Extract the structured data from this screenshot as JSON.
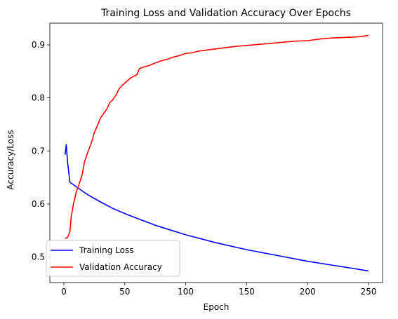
{
  "chart_data": {
    "type": "line",
    "title": "Training Loss and Validation Accuracy Over Epochs",
    "xlabel": "Epoch",
    "ylabel": "Accuracy/Loss",
    "xlim": [
      -11.5,
      261.5
    ],
    "ylim": [
      0.452,
      0.941
    ],
    "xticks": [
      0,
      50,
      100,
      150,
      200,
      250
    ],
    "yticks": [
      0.5,
      0.6,
      0.7,
      0.8,
      0.9
    ],
    "ytick_labels": [
      "0.5",
      "0.6",
      "0.7",
      "0.8",
      "0.9"
    ],
    "grid": false,
    "legend": "lower-left",
    "series": [
      {
        "name": "Training Loss",
        "color": "#0000ff",
        "x": [
          1,
          2,
          3,
          5,
          10,
          15,
          20,
          30,
          40,
          50,
          60,
          75,
          100,
          125,
          150,
          175,
          200,
          225,
          250
        ],
        "values": [
          0.693,
          0.712,
          0.68,
          0.641,
          0.633,
          0.625,
          0.617,
          0.604,
          0.592,
          0.582,
          0.573,
          0.56,
          0.542,
          0.527,
          0.514,
          0.503,
          0.492,
          0.483,
          0.474
        ]
      },
      {
        "name": "Validation Accuracy",
        "color": "#ff0000",
        "x": [
          1,
          3,
          5,
          6,
          8,
          9,
          10,
          12,
          15,
          17,
          20,
          23,
          25,
          27,
          30,
          33,
          35,
          38,
          40,
          43,
          45,
          48,
          50,
          55,
          60,
          62,
          65,
          70,
          75,
          80,
          85,
          90,
          95,
          100,
          105,
          110,
          120,
          130,
          140,
          150,
          160,
          170,
          180,
          190,
          200,
          210,
          220,
          230,
          240,
          245,
          250
        ],
        "values": [
          0.535,
          0.537,
          0.548,
          0.575,
          0.602,
          0.61,
          0.621,
          0.634,
          0.655,
          0.68,
          0.7,
          0.718,
          0.735,
          0.745,
          0.762,
          0.772,
          0.778,
          0.792,
          0.796,
          0.806,
          0.816,
          0.824,
          0.828,
          0.838,
          0.844,
          0.855,
          0.858,
          0.861,
          0.866,
          0.87,
          0.873,
          0.877,
          0.88,
          0.884,
          0.885,
          0.888,
          0.891,
          0.894,
          0.897,
          0.899,
          0.901,
          0.903,
          0.905,
          0.907,
          0.908,
          0.911,
          0.913,
          0.914,
          0.915,
          0.916,
          0.918
        ]
      }
    ]
  }
}
